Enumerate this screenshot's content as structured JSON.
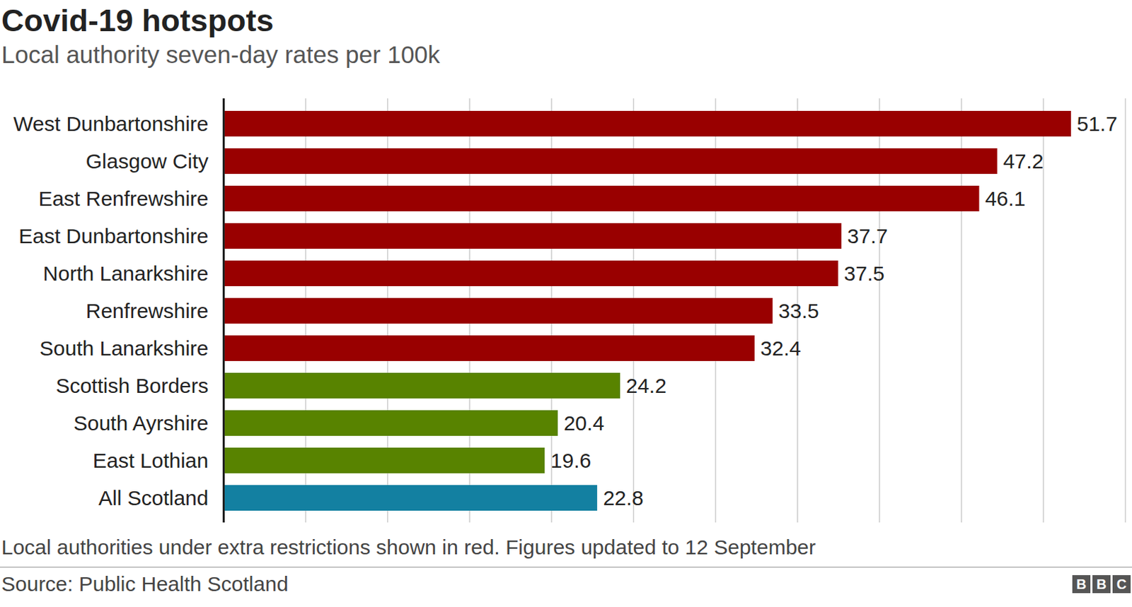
{
  "chart_data": {
    "type": "bar",
    "orientation": "horizontal",
    "title": "Covid-19 hotspots",
    "subtitle": "Local authority seven-day rates per 100k",
    "caption": "Local authorities under extra restrictions shown in red. Figures updated to 12 September",
    "source": "Source: Public Health Scotland",
    "logo": "BBC",
    "categories": [
      "West Dunbartonshire",
      "Glasgow City",
      "East Renfrewshire",
      "East Dunbartonshire",
      "North Lanarkshire",
      "Renfrewshire",
      "South Lanarkshire",
      "Scottish Borders",
      "South Ayrshire",
      "East Lothian",
      "All Scotland"
    ],
    "values": [
      51.7,
      47.2,
      46.1,
      37.7,
      37.5,
      33.5,
      32.4,
      24.2,
      20.4,
      19.6,
      22.8
    ],
    "colors": [
      "#990000",
      "#990000",
      "#990000",
      "#990000",
      "#990000",
      "#990000",
      "#990000",
      "#588300",
      "#588300",
      "#588300",
      "#1380a1"
    ],
    "xlim": [
      0,
      55
    ],
    "xticks": [
      0,
      5,
      10,
      15,
      20,
      25,
      30,
      35,
      40,
      45,
      50,
      55
    ],
    "grid": true,
    "data_labels": true,
    "tick_labels": "y"
  }
}
